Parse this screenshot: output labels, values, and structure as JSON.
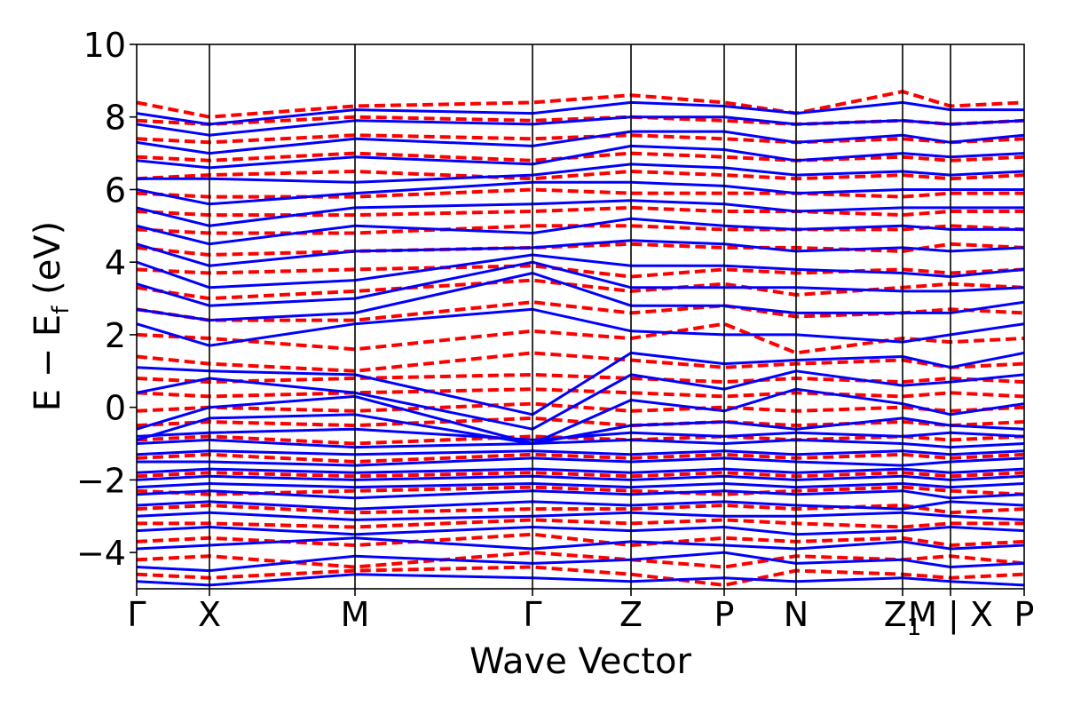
{
  "chart_data": {
    "type": "line",
    "xlabel": "Wave Vector",
    "ylabel": {
      "prefix": "E − E",
      "subscript": "f",
      "suffix": " (eV)"
    },
    "ylim": [
      -5,
      10
    ],
    "yticks": [
      -4,
      -2,
      0,
      2,
      4,
      6,
      8,
      10
    ],
    "ytick_labels": [
      "−4",
      "−2",
      "0",
      "2",
      "4",
      "6",
      "8",
      "10"
    ],
    "xlim": [
      0,
      1000
    ],
    "high_symmetry_points": [
      {
        "label": "Γ",
        "x": 0
      },
      {
        "label": "X",
        "x": 82
      },
      {
        "label": "M",
        "x": 246
      },
      {
        "label": "Γ",
        "x": 446
      },
      {
        "label": "Z",
        "x": 557
      },
      {
        "label": "P",
        "x": 662
      },
      {
        "label": "N",
        "x": 743
      },
      {
        "label": "Z",
        "subscript": "1",
        "x": 863
      },
      {
        "label": "M | X",
        "x": 917
      },
      {
        "label": "P",
        "x": 1000
      }
    ],
    "grid": false,
    "legend": "none",
    "series": [
      {
        "style": "solid",
        "color": "#0000ff",
        "x": [
          0,
          82,
          246,
          446,
          557,
          662,
          743,
          863,
          917,
          1000
        ],
        "bands": [
          [
            -4.8,
            -4.9,
            -4.6,
            -4.7,
            -4.8,
            -4.7,
            -4.8,
            -4.7,
            -4.8,
            -4.9
          ],
          [
            -4.4,
            -4.5,
            -4.1,
            -4.3,
            -4.2,
            -4.0,
            -4.3,
            -4.2,
            -4.4,
            -4.3
          ],
          [
            -3.9,
            -3.8,
            -3.6,
            -3.9,
            -3.7,
            -3.8,
            -3.9,
            -3.7,
            -3.9,
            -3.8
          ],
          [
            -3.4,
            -3.3,
            -3.5,
            -3.3,
            -3.4,
            -3.3,
            -3.5,
            -3.4,
            -3.3,
            -3.4
          ],
          [
            -3.0,
            -2.9,
            -3.1,
            -3.0,
            -2.9,
            -3.0,
            -3.0,
            -2.9,
            -3.0,
            -3.1
          ],
          [
            -2.7,
            -2.6,
            -2.8,
            -2.6,
            -2.7,
            -2.6,
            -2.7,
            -2.8,
            -2.6,
            -2.7
          ],
          [
            -2.4,
            -2.3,
            -2.5,
            -2.3,
            -2.4,
            -2.3,
            -2.4,
            -2.3,
            -2.5,
            -2.4
          ],
          [
            -2.2,
            -2.1,
            -2.2,
            -2.1,
            -2.2,
            -2.1,
            -2.2,
            -2.1,
            -2.2,
            -2.1
          ],
          [
            -2.0,
            -1.9,
            -2.0,
            -1.9,
            -2.0,
            -1.9,
            -2.0,
            -1.9,
            -2.0,
            -1.9
          ],
          [
            -1.8,
            -1.7,
            -1.8,
            -1.7,
            -1.8,
            -1.7,
            -1.8,
            -1.7,
            -1.8,
            -1.7
          ],
          [
            -1.5,
            -1.5,
            -1.6,
            -1.4,
            -1.5,
            -1.4,
            -1.5,
            -1.6,
            -1.5,
            -1.4
          ],
          [
            -1.3,
            -1.2,
            -1.3,
            -1.2,
            -1.3,
            -1.2,
            -1.3,
            -1.2,
            -1.3,
            -1.2
          ],
          [
            -1.0,
            -0.9,
            -1.1,
            -1.0,
            -0.9,
            -1.0,
            -0.9,
            -1.0,
            -1.1,
            -1.0
          ],
          [
            -0.8,
            -0.7,
            -0.6,
            -0.9,
            -0.7,
            -0.8,
            -0.7,
            -0.8,
            -0.7,
            -0.8
          ],
          [
            -0.9,
            -0.3,
            -0.2,
            -1.0,
            -0.5,
            -0.4,
            -0.6,
            -0.3,
            -0.5,
            -0.6
          ],
          [
            -0.6,
            0.0,
            0.3,
            -1.0,
            0.2,
            -0.1,
            0.5,
            0.1,
            -0.2,
            0.1
          ],
          [
            0.4,
            0.8,
            0.4,
            -0.6,
            0.9,
            0.5,
            1.0,
            0.6,
            0.7,
            0.9
          ],
          [
            1.1,
            1.0,
            0.9,
            -0.2,
            1.5,
            1.2,
            1.3,
            1.4,
            1.1,
            1.5
          ],
          [
            2.3,
            1.7,
            2.3,
            2.7,
            2.1,
            2.0,
            2.0,
            1.8,
            2.0,
            2.3
          ],
          [
            2.7,
            2.4,
            2.6,
            3.7,
            2.8,
            2.8,
            2.6,
            2.6,
            2.6,
            2.9
          ],
          [
            3.4,
            2.8,
            3.0,
            4.0,
            3.3,
            3.3,
            3.3,
            3.2,
            3.2,
            3.3
          ],
          [
            4.0,
            3.3,
            3.5,
            4.2,
            3.9,
            3.9,
            3.8,
            3.7,
            3.6,
            3.8
          ],
          [
            4.5,
            3.9,
            4.3,
            4.4,
            4.6,
            4.5,
            4.3,
            4.4,
            4.3,
            4.4
          ],
          [
            5.0,
            4.5,
            5.0,
            4.8,
            5.2,
            5.0,
            4.9,
            5.0,
            4.9,
            4.9
          ],
          [
            5.5,
            5.0,
            5.5,
            5.6,
            5.7,
            5.6,
            5.4,
            5.5,
            5.5,
            5.5
          ],
          [
            6.0,
            5.6,
            5.9,
            6.2,
            6.2,
            6.1,
            5.9,
            6.0,
            6.0,
            6.0
          ],
          [
            6.3,
            6.3,
            6.2,
            6.4,
            6.7,
            6.6,
            6.4,
            6.5,
            6.4,
            6.5
          ],
          [
            6.8,
            6.6,
            6.9,
            6.7,
            7.2,
            7.1,
            6.8,
            7.0,
            6.9,
            7.0
          ],
          [
            7.3,
            7.0,
            7.4,
            7.2,
            7.6,
            7.6,
            7.3,
            7.5,
            7.3,
            7.5
          ],
          [
            7.8,
            7.5,
            7.9,
            7.8,
            8.0,
            8.0,
            7.8,
            7.9,
            7.8,
            7.9
          ],
          [
            8.1,
            7.8,
            8.2,
            8.1,
            8.4,
            8.3,
            8.1,
            8.4,
            8.2,
            8.2
          ]
        ]
      },
      {
        "style": "dashed",
        "color": "#ff0000",
        "x": [
          0,
          82,
          246,
          446,
          557,
          662,
          743,
          863,
          917,
          1000
        ],
        "bands": [
          [
            -4.6,
            -4.7,
            -4.5,
            -4.4,
            -4.6,
            -4.9,
            -4.5,
            -4.6,
            -4.7,
            -4.6
          ],
          [
            -4.2,
            -4.1,
            -4.4,
            -4.0,
            -4.2,
            -4.4,
            -4.1,
            -4.2,
            -4.1,
            -4.3
          ],
          [
            -3.7,
            -3.6,
            -3.8,
            -3.5,
            -3.8,
            -3.6,
            -3.7,
            -3.6,
            -3.8,
            -3.7
          ],
          [
            -3.2,
            -3.2,
            -3.3,
            -3.1,
            -3.2,
            -3.1,
            -3.2,
            -3.3,
            -3.2,
            -3.2
          ],
          [
            -2.8,
            -2.7,
            -2.9,
            -2.8,
            -2.8,
            -2.7,
            -2.8,
            -2.7,
            -2.9,
            -2.8
          ],
          [
            -2.3,
            -2.4,
            -2.3,
            -2.2,
            -2.3,
            -2.4,
            -2.3,
            -2.2,
            -2.3,
            -2.4
          ],
          [
            -1.9,
            -1.8,
            -1.9,
            -1.8,
            -1.9,
            -1.8,
            -1.9,
            -1.8,
            -1.9,
            -1.8
          ],
          [
            -1.4,
            -1.3,
            -1.5,
            -1.3,
            -1.4,
            -1.3,
            -1.4,
            -1.3,
            -1.4,
            -1.3
          ],
          [
            -0.9,
            -0.8,
            -1.0,
            -0.8,
            -0.9,
            -0.8,
            -0.9,
            -0.8,
            -0.9,
            -0.8
          ],
          [
            -0.5,
            -0.4,
            -0.5,
            -0.3,
            -0.5,
            -0.4,
            -0.5,
            -0.4,
            -0.5,
            -0.4
          ],
          [
            -0.1,
            0.0,
            -0.1,
            0.1,
            -0.1,
            0.0,
            -0.1,
            0.0,
            -0.1,
            0.0
          ],
          [
            0.4,
            0.3,
            0.4,
            0.5,
            0.4,
            0.3,
            0.4,
            0.3,
            0.4,
            0.3
          ],
          [
            0.8,
            0.7,
            0.8,
            0.9,
            0.8,
            0.7,
            0.8,
            0.7,
            0.8,
            0.7
          ],
          [
            1.4,
            1.2,
            1.0,
            1.5,
            1.3,
            1.1,
            1.2,
            1.3,
            1.1,
            1.2
          ],
          [
            2.0,
            1.9,
            1.6,
            2.1,
            1.9,
            2.3,
            1.5,
            1.9,
            1.8,
            1.9
          ],
          [
            2.7,
            2.4,
            2.4,
            2.9,
            2.6,
            2.8,
            2.5,
            2.6,
            2.7,
            2.6
          ],
          [
            3.3,
            3.0,
            3.2,
            3.5,
            3.2,
            3.4,
            3.1,
            3.3,
            3.4,
            3.3
          ],
          [
            3.8,
            3.7,
            3.8,
            3.9,
            3.6,
            3.8,
            3.7,
            3.8,
            3.7,
            3.8
          ],
          [
            4.4,
            4.2,
            4.3,
            4.4,
            4.5,
            4.4,
            4.4,
            4.3,
            4.5,
            4.4
          ],
          [
            4.9,
            4.8,
            4.8,
            5.0,
            5.0,
            4.9,
            4.9,
            4.9,
            5.0,
            4.9
          ],
          [
            5.4,
            5.3,
            5.3,
            5.4,
            5.5,
            5.4,
            5.4,
            5.3,
            5.4,
            5.4
          ],
          [
            5.9,
            5.8,
            5.8,
            6.0,
            5.9,
            5.9,
            5.9,
            5.8,
            5.9,
            5.9
          ],
          [
            6.3,
            6.4,
            6.5,
            6.3,
            6.5,
            6.4,
            6.3,
            6.4,
            6.3,
            6.4
          ],
          [
            6.9,
            6.8,
            7.0,
            6.8,
            7.0,
            6.9,
            6.8,
            6.9,
            6.8,
            6.9
          ],
          [
            7.4,
            7.3,
            7.5,
            7.4,
            7.5,
            7.4,
            7.3,
            7.4,
            7.3,
            7.4
          ],
          [
            7.9,
            7.8,
            8.0,
            7.9,
            8.0,
            7.9,
            7.8,
            7.9,
            7.8,
            7.9
          ],
          [
            8.4,
            8.0,
            8.3,
            8.4,
            8.6,
            8.4,
            8.1,
            8.7,
            8.3,
            8.4
          ]
        ]
      }
    ]
  }
}
